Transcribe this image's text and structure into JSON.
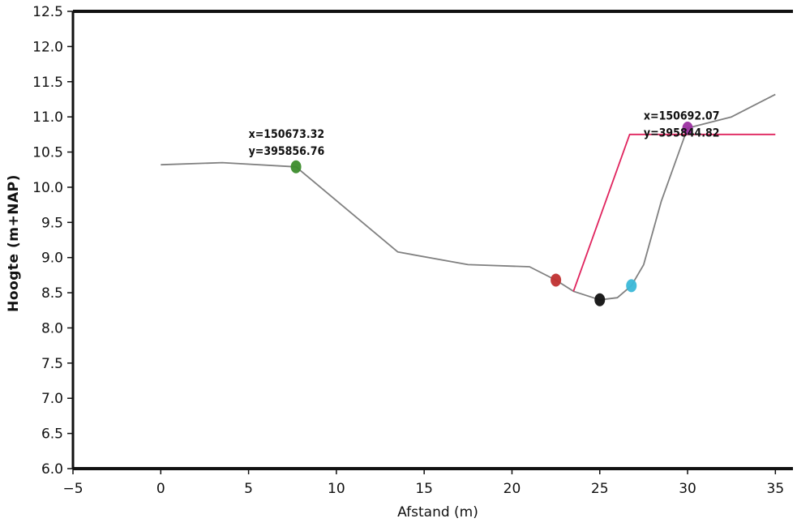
{
  "chart_data": {
    "type": "line",
    "title": "",
    "xlabel": "Afstand (m)",
    "ylabel": "Hoogte (m+NAP)",
    "xlim": [
      -5,
      36
    ],
    "ylim": [
      6.0,
      12.5
    ],
    "xticks": [
      -5,
      0,
      5,
      10,
      15,
      20,
      25,
      30,
      35
    ],
    "xtick_labels": [
      "−5",
      "0",
      "5",
      "10",
      "15",
      "20",
      "25",
      "30",
      "35"
    ],
    "yticks": [
      6.0,
      6.5,
      7.0,
      7.5,
      8.0,
      8.5,
      9.0,
      9.5,
      10.0,
      10.5,
      11.0,
      11.5,
      12.0,
      12.5
    ],
    "ytick_labels": [
      "6.0",
      "6.5",
      "7.0",
      "7.5",
      "8.0",
      "8.5",
      "9.0",
      "9.5",
      "10.0",
      "10.5",
      "11.0",
      "11.5",
      "12.0",
      "12.5"
    ],
    "grid": false,
    "series": [
      {
        "color": "#808080",
        "x": [
          0,
          3.5,
          7.7,
          13.5,
          17.5,
          21.0,
          22.5,
          23.5,
          25.0,
          26.0,
          26.8,
          27.5,
          28.5,
          30.0,
          32.5,
          35.0
        ],
        "y": [
          10.32,
          10.35,
          10.29,
          9.08,
          8.9,
          8.87,
          8.68,
          8.52,
          8.4,
          8.43,
          8.6,
          8.9,
          9.8,
          10.84,
          11.0,
          11.32
        ]
      },
      {
        "color": "#e0245e",
        "x": [
          23.5,
          26.7,
          35.0
        ],
        "y": [
          8.52,
          10.75,
          10.75
        ]
      }
    ],
    "markers": [
      {
        "x": 7.7,
        "y": 10.29,
        "color": "#3c8c2c"
      },
      {
        "x": 22.5,
        "y": 8.68,
        "color": "#c03030"
      },
      {
        "x": 25.0,
        "y": 8.4,
        "color": "#111111"
      },
      {
        "x": 26.8,
        "y": 8.6,
        "color": "#3bb8d8"
      },
      {
        "x": 30.0,
        "y": 10.84,
        "color": "#9b2fa0"
      }
    ],
    "annotations": [
      {
        "x": 5.0,
        "y": 10.7,
        "lines": [
          "x=150673.32",
          "y=395856.76"
        ]
      },
      {
        "x": 27.5,
        "y": 10.96,
        "lines": [
          "x=150692.07",
          "y=395844.82"
        ]
      }
    ]
  }
}
